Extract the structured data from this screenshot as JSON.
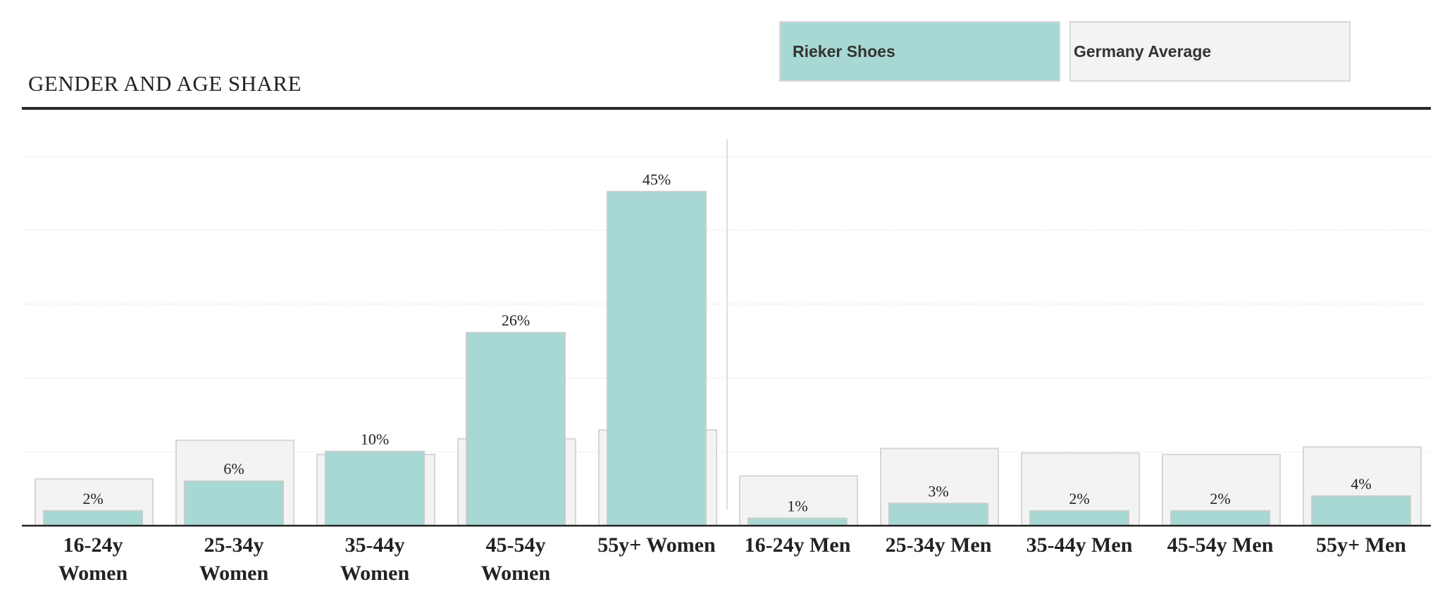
{
  "legend": {
    "rieker_label": "Rieker Shoes",
    "average_label": "Germany Average"
  },
  "chart_data": {
    "type": "bar",
    "title": "GENDER AND AGE SHARE",
    "categories": [
      "16-24y Women",
      "25-34y Women",
      "35-44y Women",
      "45-54y Women",
      "55y+ Women",
      "16-24y Men",
      "25-34y Men",
      "35-44y Men",
      "45-54y Men",
      "55y+ Men"
    ],
    "series": [
      {
        "name": "Rieker Shoes",
        "values": [
          2,
          6,
          10,
          26,
          45,
          1,
          3,
          2,
          2,
          4
        ],
        "color": "#a8d8d3"
      },
      {
        "name": "Germany Average",
        "values": [
          6.3,
          11.5,
          9.6,
          11.7,
          12.9,
          6.7,
          10.4,
          9.8,
          9.6,
          10.6
        ],
        "color": "#f3f3f3"
      }
    ],
    "data_labels": [
      "2%",
      "6%",
      "10%",
      "26%",
      "45%",
      "1%",
      "3%",
      "2%",
      "2%",
      "4%"
    ],
    "ylim": [
      0,
      50
    ],
    "grid": true,
    "legend_position": "top-right"
  }
}
